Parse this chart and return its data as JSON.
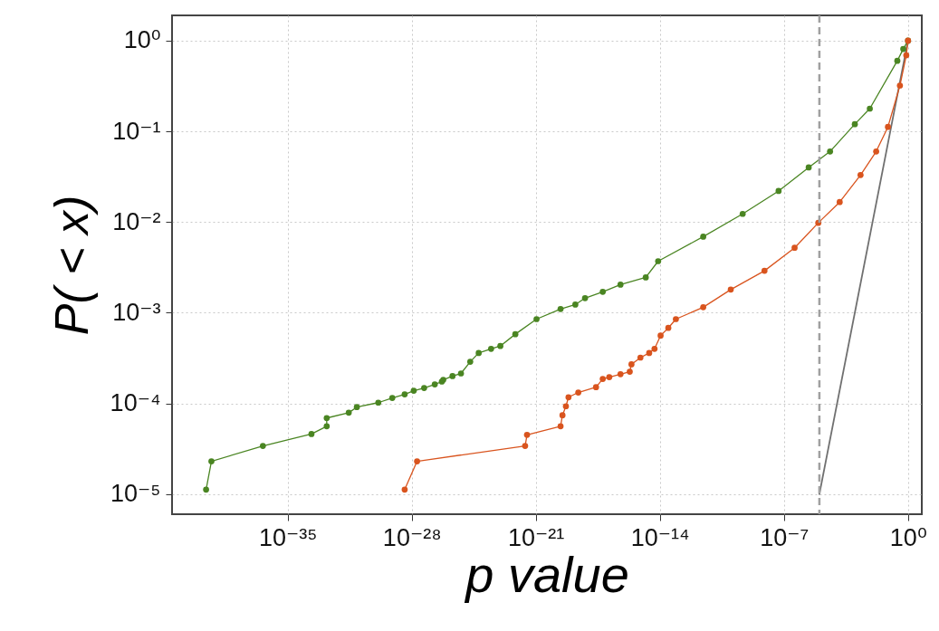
{
  "chart_data": {
    "type": "line",
    "xlabel": "p value",
    "ylabel": "P( < x)",
    "log": "xy",
    "grid": true,
    "marker": "circle",
    "line_style": "solid",
    "xlim": [
      3e-42,
      6
    ],
    "ylim": [
      6e-06,
      1.9
    ],
    "xticks": [
      {
        "value": 1e-35,
        "label": "10⁻³⁵"
      },
      {
        "value": 1e-28,
        "label": "10⁻²⁸"
      },
      {
        "value": 1e-21,
        "label": "10⁻²¹"
      },
      {
        "value": 1e-14,
        "label": "10⁻¹⁴"
      },
      {
        "value": 1e-07,
        "label": "10⁻⁷"
      },
      {
        "value": 1,
        "label": "10⁰"
      }
    ],
    "yticks": [
      {
        "value": 1e-05,
        "label": "10⁻⁵"
      },
      {
        "value": 0.0001,
        "label": "10⁻⁴"
      },
      {
        "value": 0.001,
        "label": "10⁻³"
      },
      {
        "value": 0.01,
        "label": "10⁻²"
      },
      {
        "value": 0.1,
        "label": "10⁻¹"
      },
      {
        "value": 1,
        "label": "10⁰"
      }
    ],
    "ref_lines": [
      {
        "axis": "x",
        "value": 1e-05,
        "label": null,
        "color": "#a0a0a0",
        "line_style": "dashed"
      }
    ],
    "series": [
      {
        "type": "line",
        "color": "#707070",
        "marker": "none",
        "x": [
          1e-05,
          1
        ],
        "values": [
          1e-05,
          1
        ]
      },
      {
        "color": "#4a8522",
        "x": [
          2.5e-40,
          5e-40,
          4e-37,
          2.2e-34,
          1.6e-33,
          1.6e-33,
          2.8e-32,
          8e-32,
          1.3e-30,
          8e-30,
          4e-29,
          1.3e-28,
          5e-28,
          2e-27,
          5e-27,
          6e-27,
          2e-26,
          6e-26,
          2e-25,
          6e-25,
          3e-24,
          1e-23,
          7e-23,
          1.1e-21,
          2.5e-20,
          1.7e-19,
          6e-19,
          6e-18,
          6e-17,
          1.6e-15,
          8e-15,
          2.8e-12,
          4.7e-10,
          5e-08,
          2.5e-06,
          4e-05,
          0.001,
          0.007,
          0.25,
          0.54,
          1
        ],
        "values": [
          1.12e-05,
          2.3e-05,
          3.4e-05,
          4.6e-05,
          5.6e-05,
          6.9e-05,
          7.9e-05,
          9.1e-05,
          0.000102,
          0.000115,
          0.000126,
          0.000138,
          0.000148,
          0.000162,
          0.000174,
          0.000182,
          0.0002,
          0.000214,
          0.000288,
          0.00036,
          0.0004,
          0.00043,
          0.00058,
          0.00085,
          0.0011,
          0.00123,
          0.00145,
          0.0017,
          0.00204,
          0.00245,
          0.0037,
          0.0069,
          0.0123,
          0.022,
          0.04,
          0.06,
          0.12,
          0.178,
          0.6,
          0.81,
          1
        ]
      },
      {
        "color": "#d9541e",
        "x": [
          4e-29,
          2e-28,
          2.5e-22,
          3.2e-22,
          2.5e-20,
          3.2e-20,
          5e-20,
          7e-20,
          2.5e-19,
          2.5e-18,
          6e-18,
          1.4e-17,
          6e-17,
          2e-16,
          2.5e-16,
          8e-16,
          2.5e-15,
          5e-15,
          1.1e-14,
          3e-14,
          8e-14,
          2.8e-12,
          1e-10,
          8e-09,
          4e-07,
          8.7e-06,
          0.00014,
          0.0021,
          0.016,
          0.074,
          0.35,
          0.8,
          1
        ],
        "values": [
          1.12e-05,
          2.3e-05,
          3.4e-05,
          4.5e-05,
          5.6e-05,
          7.4e-05,
          9.3e-05,
          0.000117,
          0.000132,
          0.000151,
          0.000186,
          0.000195,
          0.00021,
          0.000224,
          0.00027,
          0.00032,
          0.00036,
          0.0004,
          0.00056,
          0.00068,
          0.00085,
          0.00115,
          0.0018,
          0.0029,
          0.0052,
          0.0098,
          0.0166,
          0.033,
          0.06,
          0.112,
          0.32,
          0.69,
          1
        ]
      }
    ]
  }
}
